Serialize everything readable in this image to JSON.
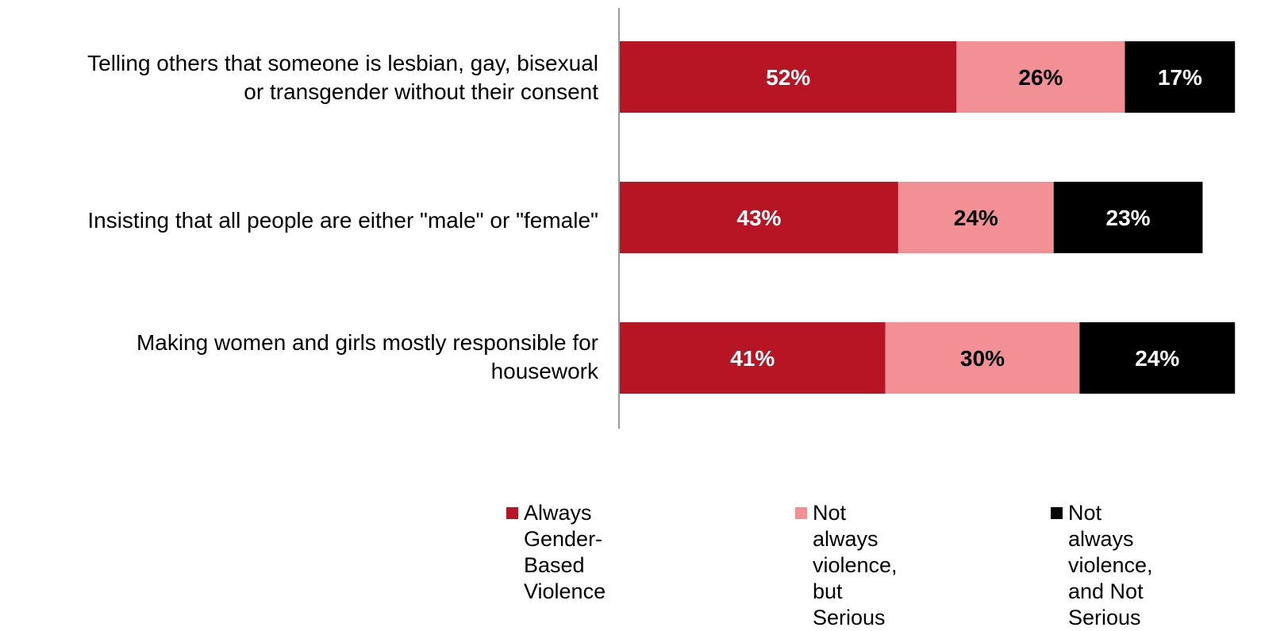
{
  "chart_data": {
    "type": "bar",
    "orientation": "horizontal",
    "stacked": true,
    "categories": [
      "Telling others that someone is lesbian, gay, bisexual\nor transgender without their consent",
      "Insisting that all people are either \"male\" or \"female\"",
      "Making women and girls mostly responsible for\nhousework"
    ],
    "series": [
      {
        "name": "Always\nGender-Based Violence",
        "color": "#b81524",
        "label_color": "#ffffff",
        "values": [
          52,
          43,
          41
        ]
      },
      {
        "name": "Not always violence,\nbut Serious",
        "color": "#f29095",
        "label_color": "#000000",
        "values": [
          26,
          24,
          30
        ]
      },
      {
        "name": "Not always violence,\nand Not Serious",
        "color": "#000000",
        "label_color": "#ffffff",
        "values": [
          17,
          23,
          24
        ]
      }
    ],
    "value_suffix": "%",
    "xlim": [
      0,
      100
    ],
    "grid": false,
    "legend_position": "bottom-right"
  }
}
